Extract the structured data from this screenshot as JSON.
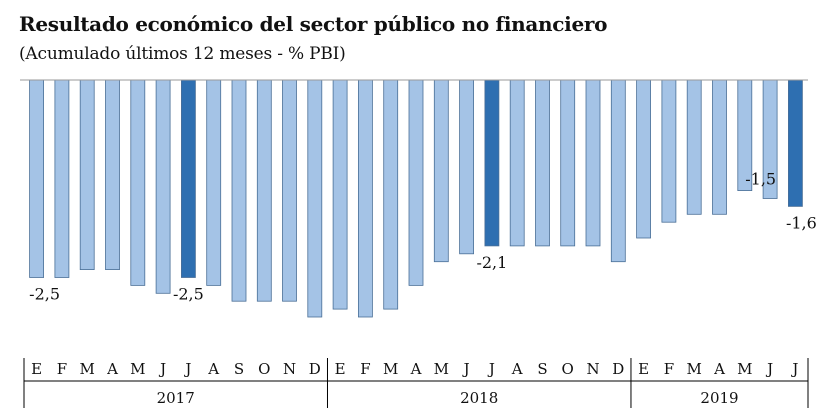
{
  "header": {
    "title": "Resultado económico del sector público no financiero",
    "subtitle": "(Acumulado últimos 12 meses - % PBI)"
  },
  "colors": {
    "bar": "#a4c3e6",
    "bar_highlight": "#2e6fb1",
    "bar_border": "#4a6f97",
    "axis": "#000000"
  },
  "chart_data": {
    "type": "bar",
    "categories": [
      "E",
      "F",
      "M",
      "A",
      "M",
      "J",
      "J",
      "A",
      "S",
      "O",
      "N",
      "D",
      "E",
      "F",
      "M",
      "A",
      "M",
      "J",
      "J",
      "A",
      "S",
      "O",
      "N",
      "D",
      "E",
      "F",
      "M",
      "A",
      "M",
      "J",
      "J"
    ],
    "years": [
      {
        "label": "2017",
        "start": 0,
        "end": 11
      },
      {
        "label": "2018",
        "start": 12,
        "end": 23
      },
      {
        "label": "2019",
        "start": 24,
        "end": 30
      }
    ],
    "values": [
      -2.5,
      -2.5,
      -2.4,
      -2.4,
      -2.6,
      -2.7,
      -2.5,
      -2.6,
      -2.8,
      -2.8,
      -2.8,
      -3.0,
      -2.9,
      -3.0,
      -2.9,
      -2.6,
      -2.3,
      -2.2,
      -2.1,
      -2.1,
      -2.1,
      -2.1,
      -2.1,
      -2.3,
      -2.0,
      -1.8,
      -1.7,
      -1.7,
      -1.4,
      -1.5,
      -1.6
    ],
    "highlight": [
      6,
      18,
      30
    ],
    "data_labels": [
      {
        "index": 0,
        "text": "-2,5"
      },
      {
        "index": 6,
        "text": "-2,5"
      },
      {
        "index": 18,
        "text": "-2,1"
      },
      {
        "index": 29,
        "text": "-1,5"
      },
      {
        "index": 30,
        "text": "-1,6"
      }
    ],
    "ylim": [
      -3.3,
      0
    ],
    "grid": false
  }
}
